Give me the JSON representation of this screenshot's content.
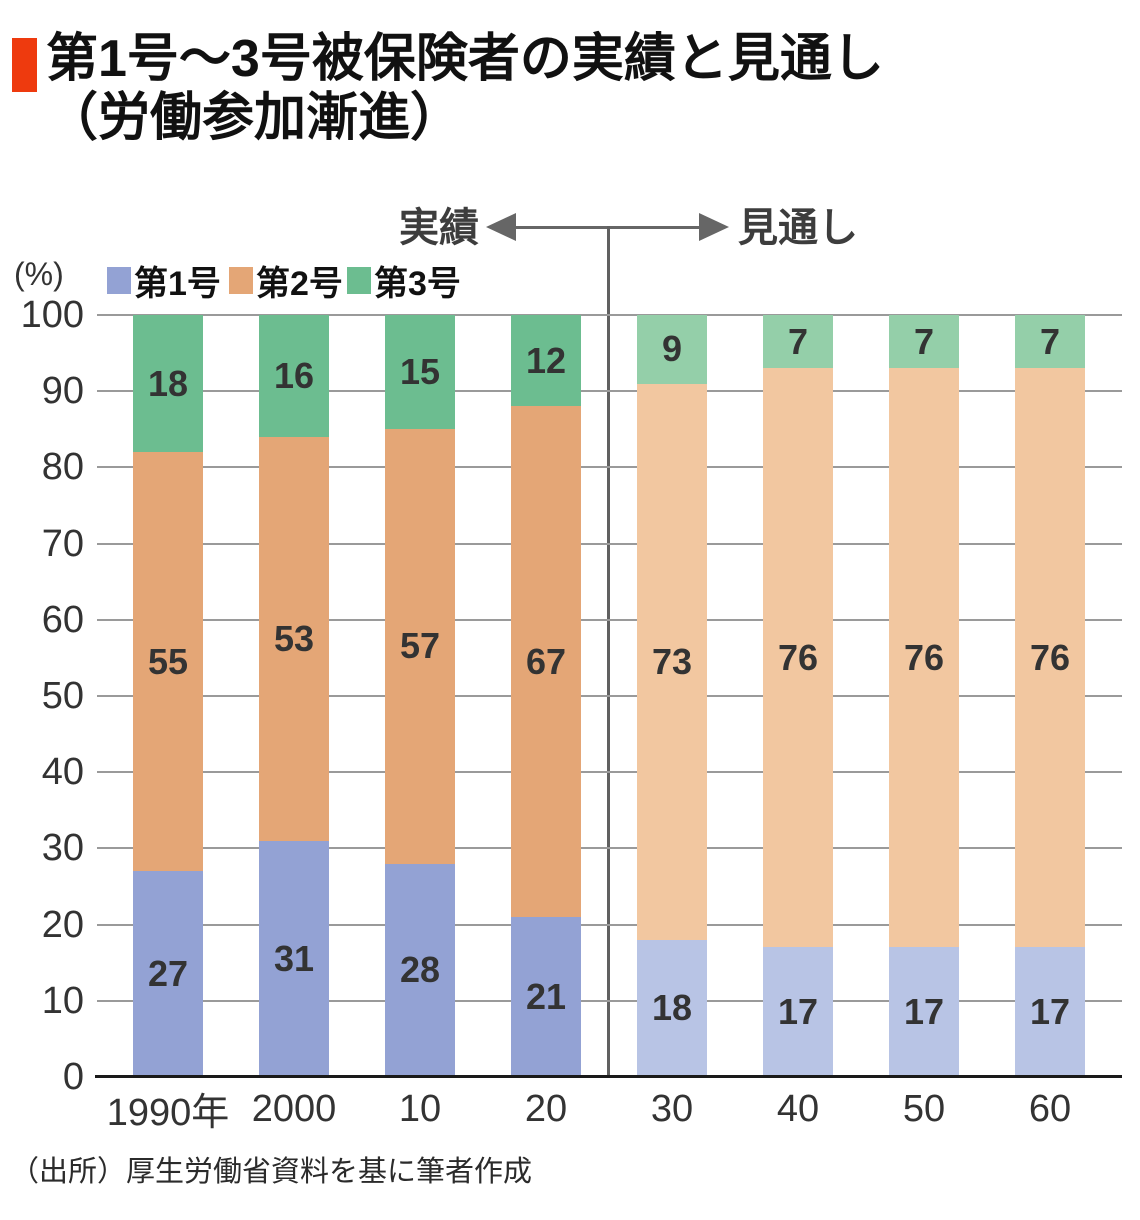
{
  "title": {
    "line1": "第1号～3号被保険者の実績と見通し",
    "line2": "（労働参加漸進）",
    "bullet_color": "#ee3a0e"
  },
  "annotations": {
    "actual_label": "実績",
    "forecast_label": "見通し"
  },
  "y_axis": {
    "unit_label": "(%)",
    "ticks": [
      0,
      10,
      20,
      30,
      40,
      50,
      60,
      70,
      80,
      90,
      100
    ]
  },
  "source": "（出所）厚生労働省資料を基に筆者作成",
  "chart_data": {
    "type": "stacked-bar",
    "title": "第1号～3号被保険者の実績と見通し（労働参加漸進）",
    "categories": [
      "1990年",
      "2000",
      "10",
      "20",
      "30",
      "40",
      "50",
      "60"
    ],
    "series": [
      {
        "name": "第1号",
        "values": [
          27,
          31,
          28,
          21,
          18,
          17,
          17,
          17
        ]
      },
      {
        "name": "第2号",
        "values": [
          55,
          53,
          57,
          67,
          73,
          76,
          76,
          76
        ]
      },
      {
        "name": "第3号",
        "values": [
          18,
          16,
          15,
          12,
          9,
          7,
          7,
          7
        ]
      }
    ],
    "actual_count": 4,
    "colors_actual": [
      "#93a2d4",
      "#e4a676",
      "#6cbd90"
    ],
    "colors_forecast": [
      "#b8c4e5",
      "#f2c7a0",
      "#94cfa9"
    ],
    "ylim": [
      0,
      100
    ],
    "grid": true,
    "legend_position": "top-left"
  }
}
